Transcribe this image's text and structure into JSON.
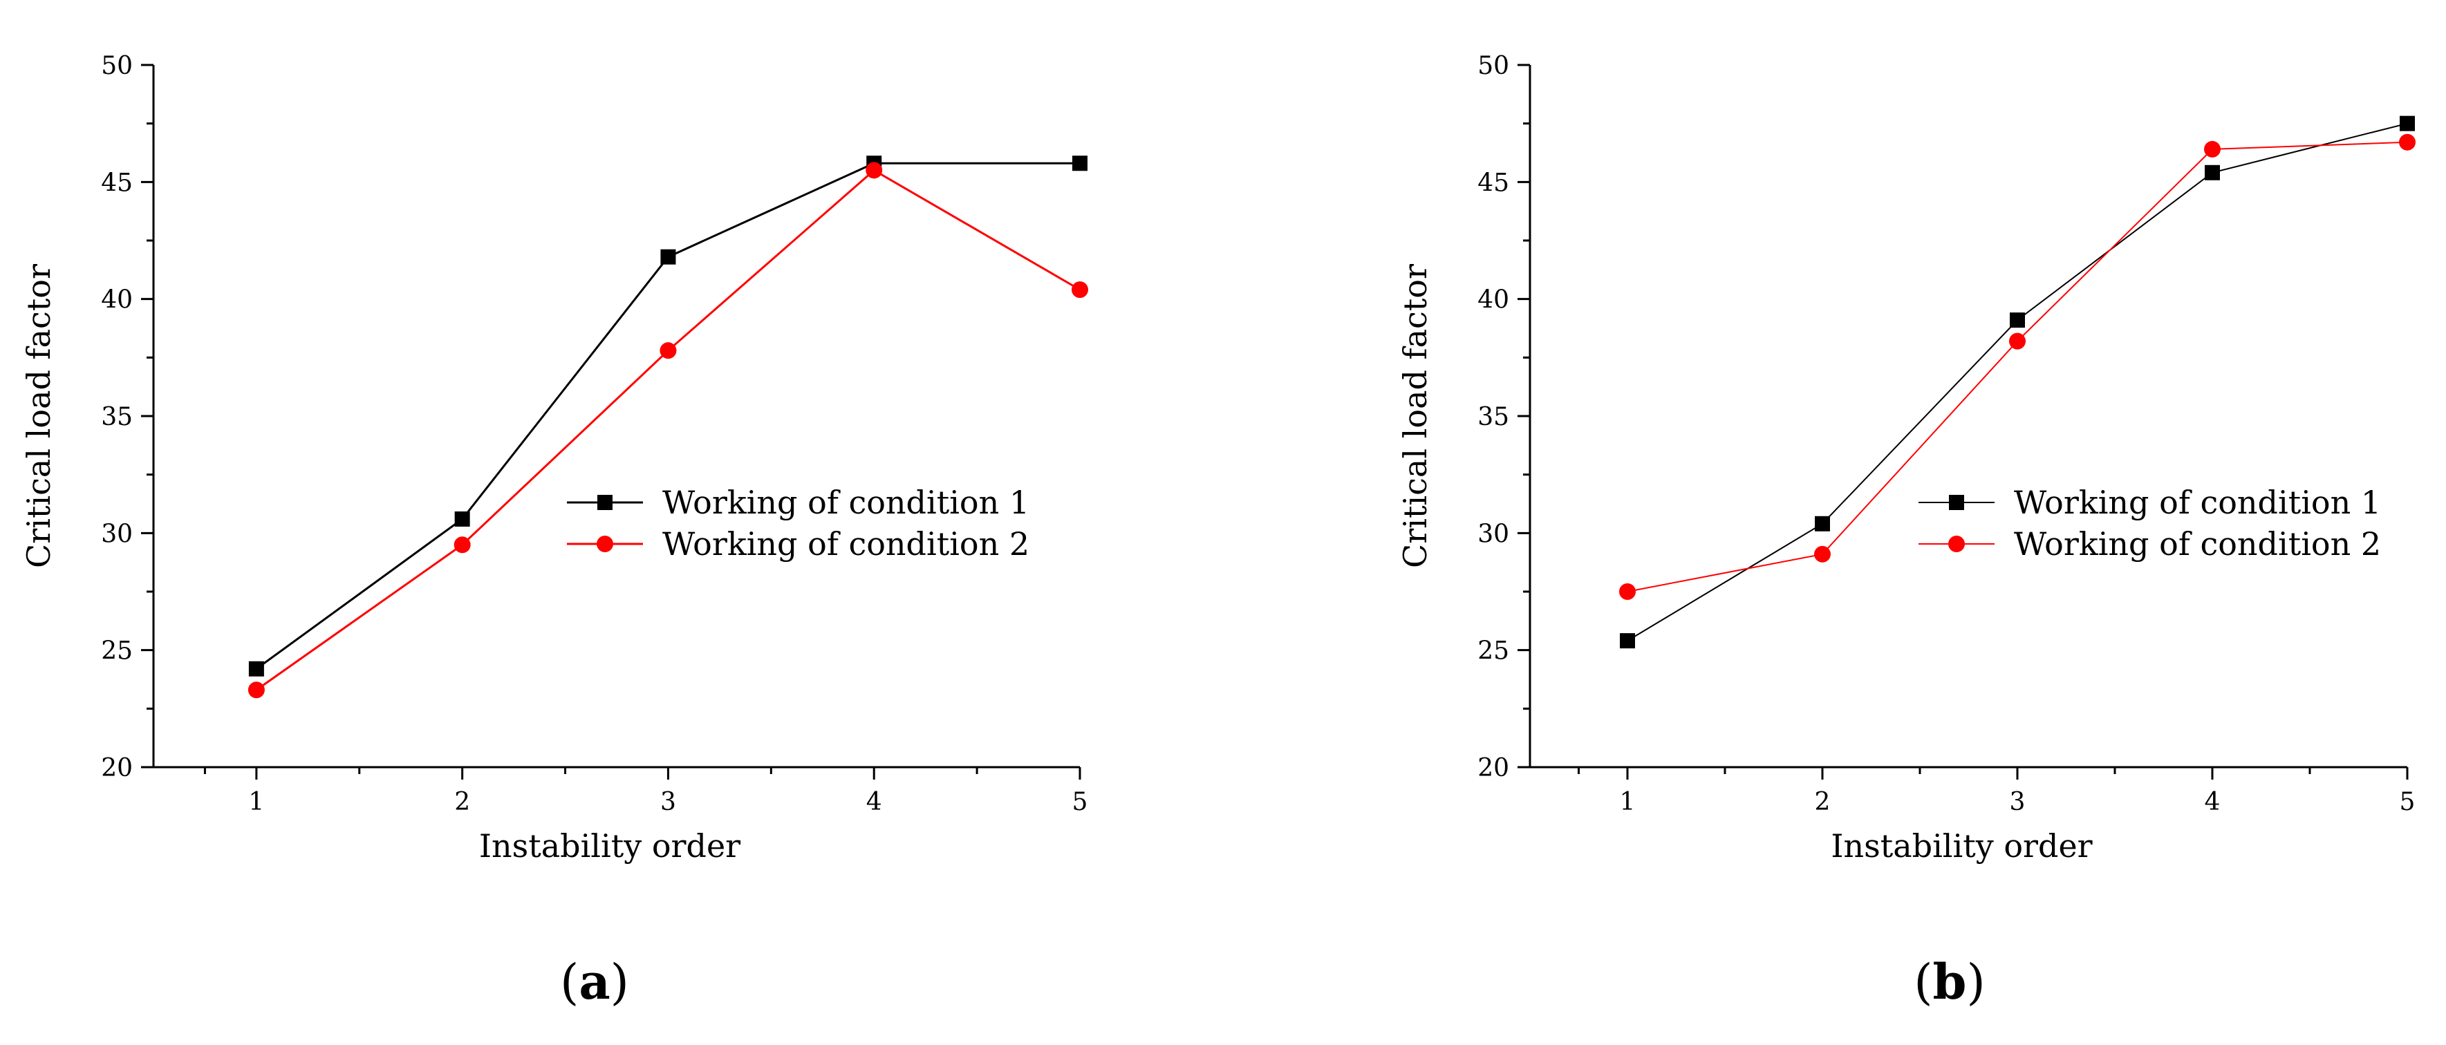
{
  "colors": {
    "series1": "#000000",
    "series2": "#ff0000",
    "axis": "#000000"
  },
  "chart_data": [
    {
      "type": "line",
      "panel_label": "a",
      "xlabel": "Instability order",
      "ylabel": "Critical load factor",
      "xlim": [
        0.5,
        5
      ],
      "ylim": [
        20,
        50
      ],
      "x_ticks": [
        1,
        2,
        3,
        4,
        5
      ],
      "y_ticks": [
        20,
        25,
        30,
        35,
        40,
        45,
        50
      ],
      "x": [
        1,
        2,
        3,
        4,
        5
      ],
      "series": [
        {
          "name": "Working of condition 1",
          "values": [
            24.2,
            30.6,
            41.8,
            45.8,
            45.8
          ],
          "color": "#000000",
          "marker": "square"
        },
        {
          "name": "Working of condition 2",
          "values": [
            23.3,
            29.5,
            37.8,
            45.5,
            40.4
          ],
          "color": "#ff0000",
          "marker": "circle"
        }
      ],
      "legend_position": "center-right",
      "grid": false
    },
    {
      "type": "line",
      "panel_label": "b",
      "xlabel": "Instability order",
      "ylabel": "Critical load factor",
      "xlim": [
        0.5,
        5
      ],
      "ylim": [
        20,
        50
      ],
      "x_ticks": [
        1,
        2,
        3,
        4,
        5
      ],
      "y_ticks": [
        20,
        25,
        30,
        35,
        40,
        45,
        50
      ],
      "x": [
        1,
        2,
        3,
        4,
        5
      ],
      "series": [
        {
          "name": "Working of condition 1",
          "values": [
            25.4,
            30.4,
            39.1,
            45.4,
            47.5
          ],
          "color": "#000000",
          "marker": "square"
        },
        {
          "name": "Working of condition 2",
          "values": [
            27.5,
            29.1,
            38.2,
            46.4,
            46.7
          ],
          "color": "#ff0000",
          "marker": "circle"
        }
      ],
      "legend_position": "center-right",
      "grid": false
    }
  ]
}
